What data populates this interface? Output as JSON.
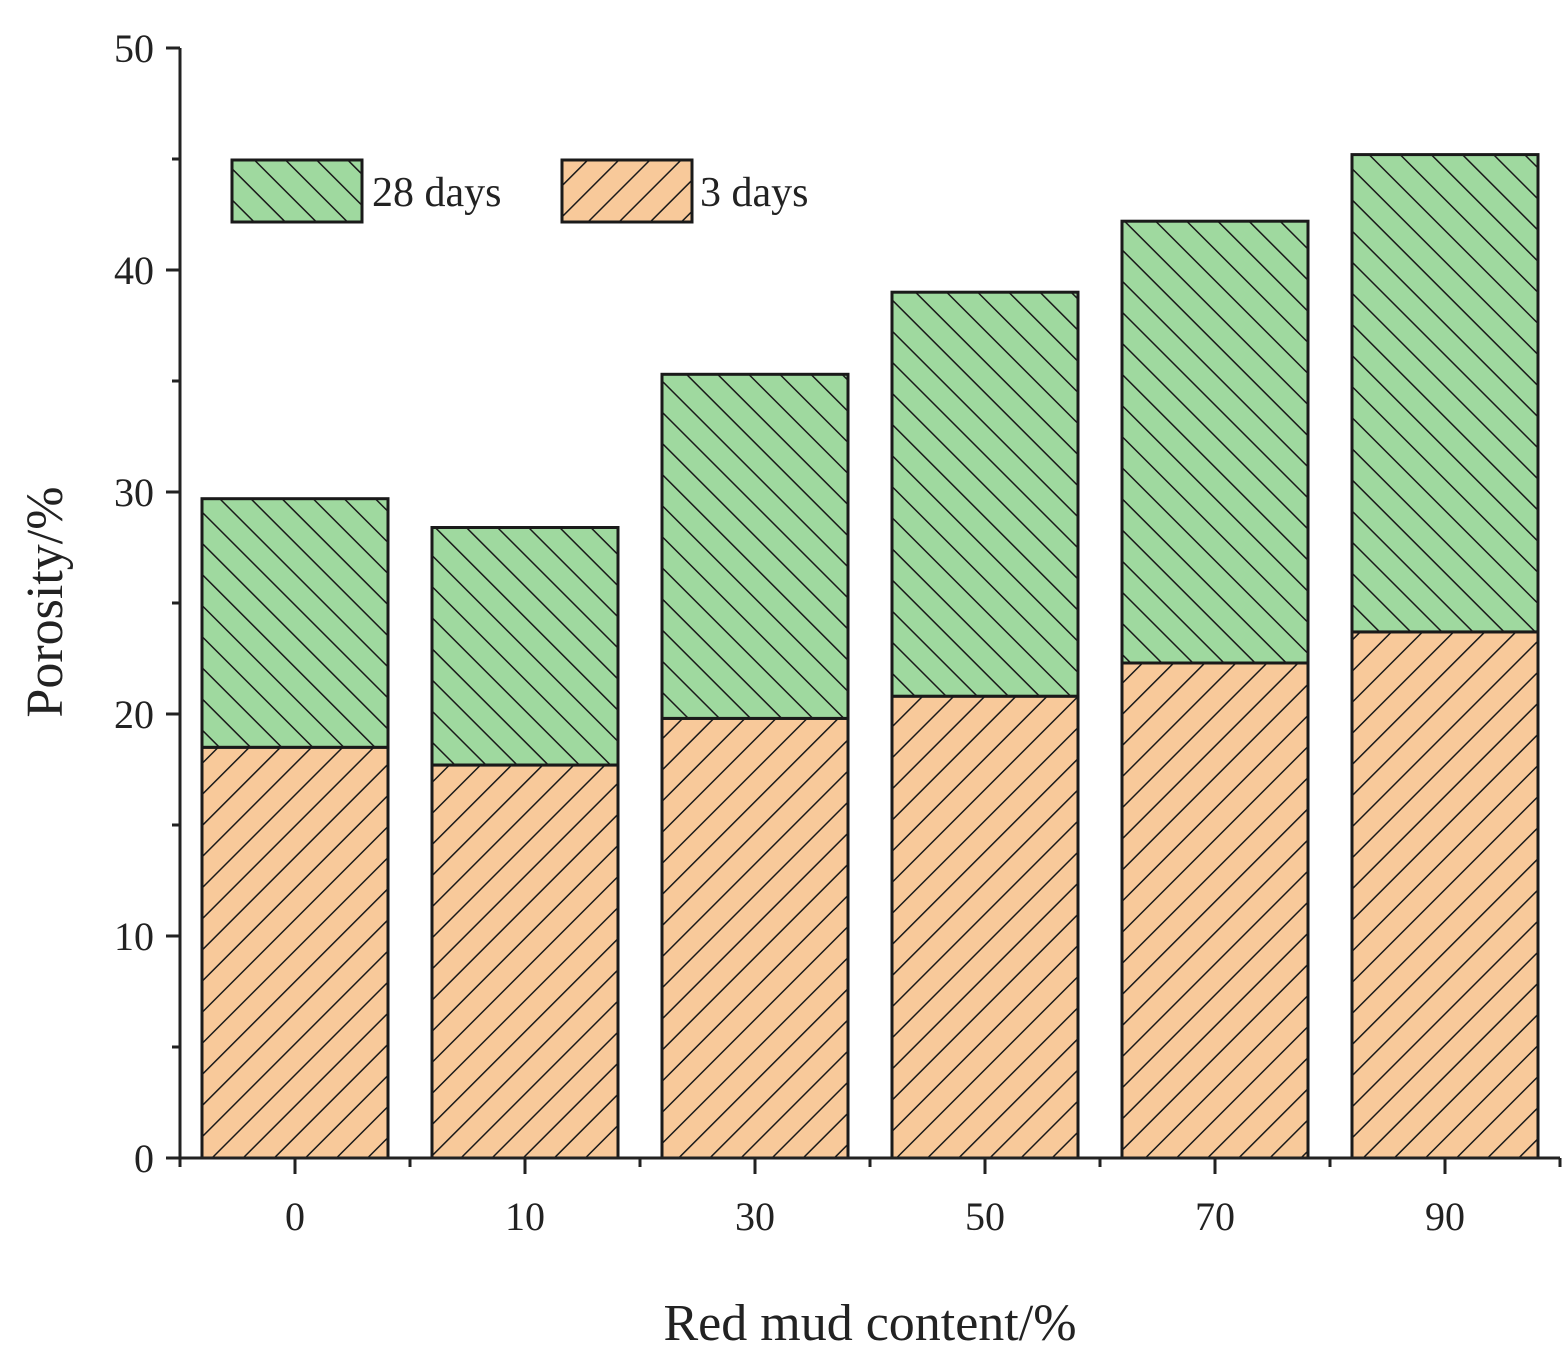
{
  "chart_data": {
    "type": "bar",
    "stacked": true,
    "categories": [
      "0",
      "10",
      "30",
      "50",
      "70",
      "90"
    ],
    "series": [
      {
        "name": "3 days",
        "values": [
          18.5,
          17.7,
          19.8,
          20.8,
          22.3,
          23.7
        ],
        "color": "#f8c99a",
        "hatch": "forward-diagonal"
      },
      {
        "name": "28 days",
        "values": [
          11.2,
          10.7,
          15.5,
          18.2,
          19.9,
          21.5
        ],
        "color": "#9fd99f",
        "hatch": "backward-diagonal"
      }
    ],
    "xlabel": "Red mud content/%",
    "ylabel": "Porosity/%",
    "ylim": [
      0,
      50
    ],
    "yticks": [
      "0",
      "10",
      "20",
      "30",
      "40",
      "50"
    ],
    "legend": {
      "placement": "top-left",
      "order": [
        "28 days",
        "3 days"
      ]
    },
    "grid": false
  }
}
